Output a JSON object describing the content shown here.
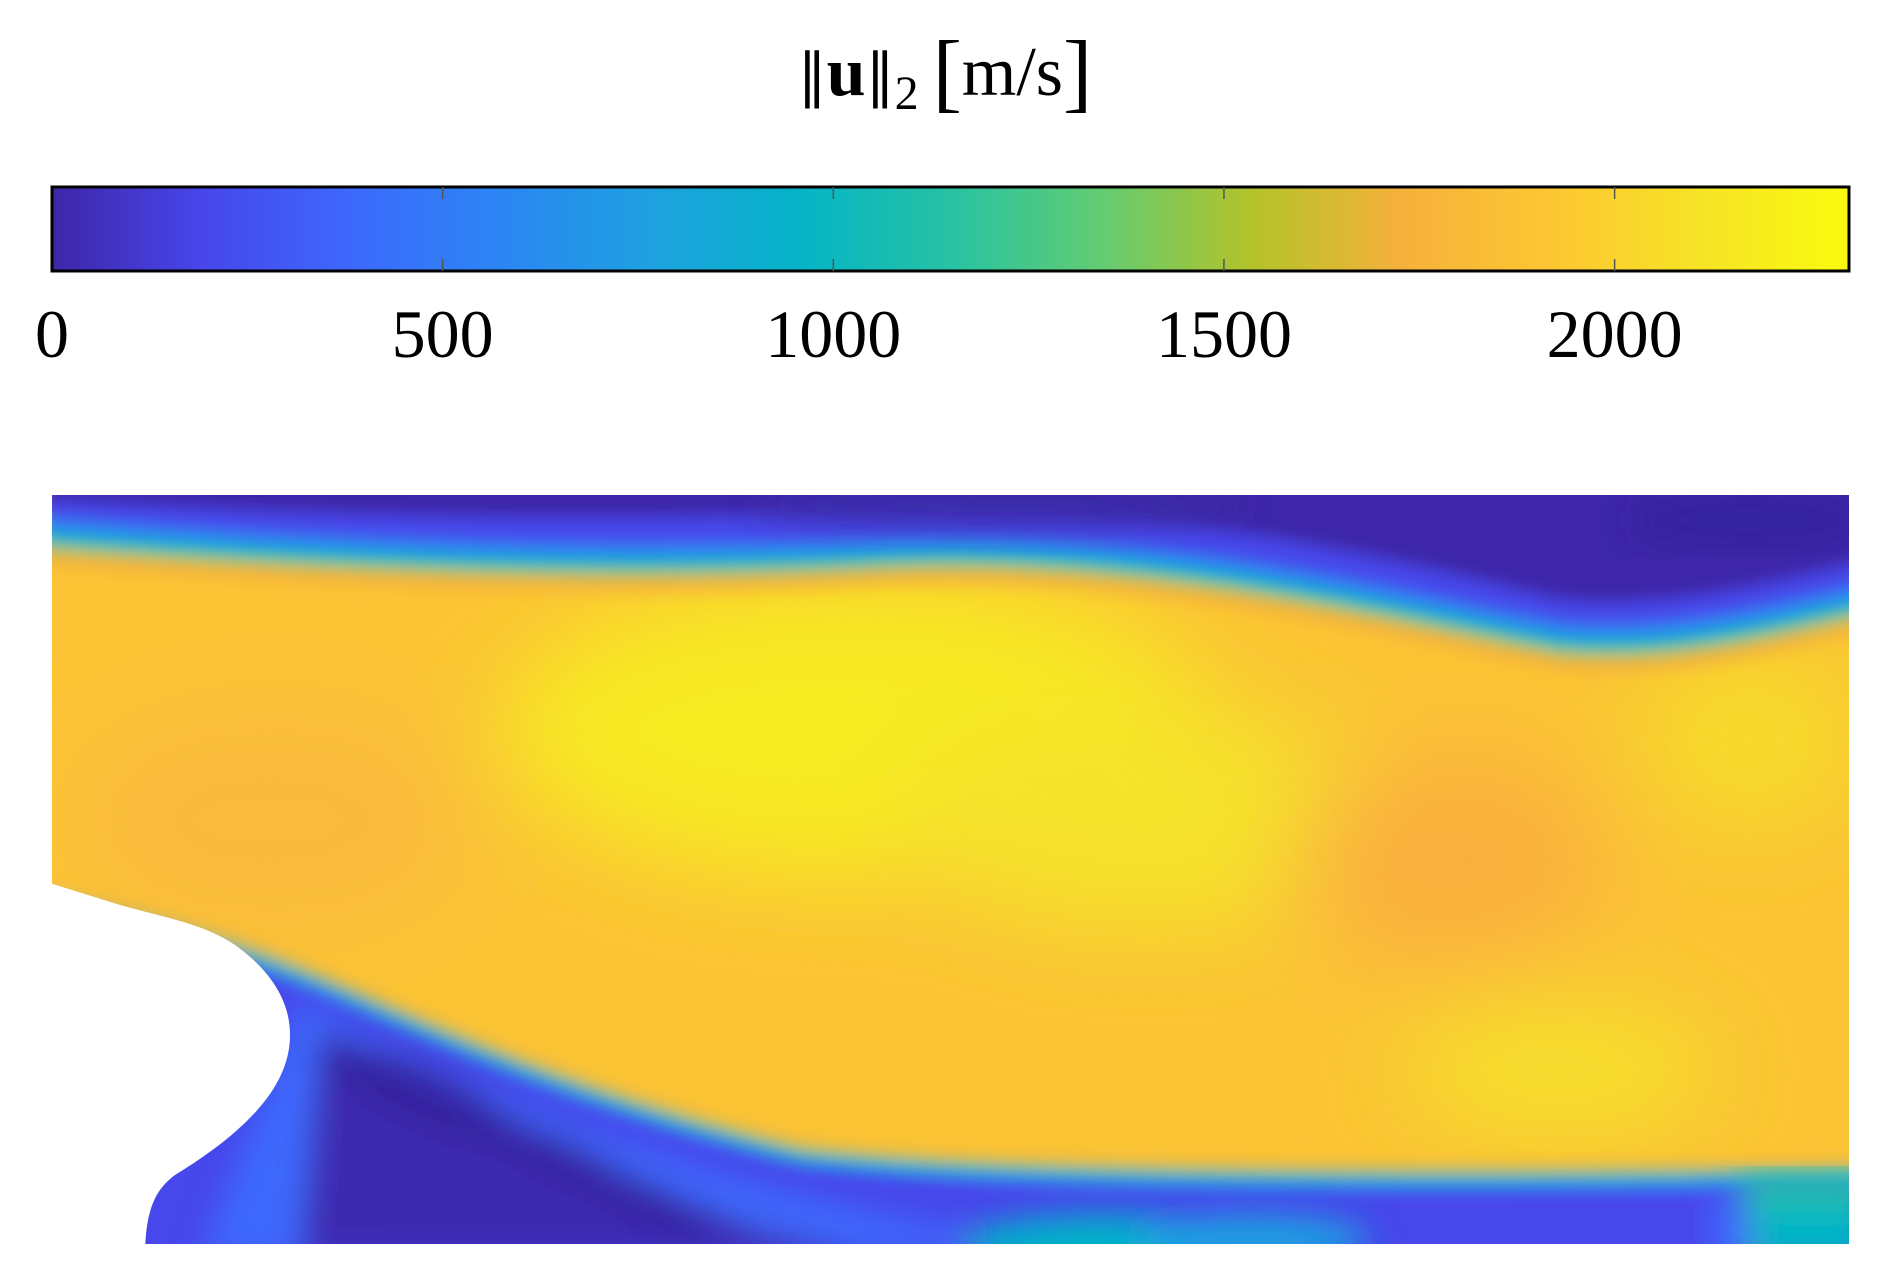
{
  "chart_data": {
    "type": "heatmap",
    "title_parts": {
      "norm_open": "‖",
      "vector": "u",
      "norm_close": "‖",
      "subscript": "2",
      "bracket_open": "[",
      "unit": "m/s",
      "bracket_close": "]"
    },
    "colorbar": {
      "orientation": "horizontal",
      "range": [
        0,
        2300
      ],
      "ticks": [
        0,
        500,
        1000,
        1500,
        2000
      ],
      "tick_labels": [
        "0",
        "500",
        "1000",
        "1500",
        "2000"
      ],
      "colormap": "parula",
      "colormap_stops": [
        "#3e26a8",
        "#4746eb",
        "#3d69fd",
        "#2b86f3",
        "#1ea1e0",
        "#04b4c7",
        "#27c2a3",
        "#62cc73",
        "#b2c32a",
        "#f5b13b",
        "#fdc632",
        "#f6e326",
        "#f9fb0e"
      ]
    },
    "field": {
      "quantity": "velocity magnitude",
      "units": "m/s",
      "regions": [
        {
          "region": "upper quiescent layer",
          "value_range": [
            50,
            250
          ]
        },
        {
          "region": "upper shear layer",
          "value_range": [
            700,
            1400
          ]
        },
        {
          "region": "central jet core",
          "value_range": [
            1950,
            2300
          ]
        },
        {
          "region": "lower shear layer",
          "value_range": [
            500,
            1400
          ]
        },
        {
          "region": "recirculation zone below lip",
          "value_range": [
            100,
            600
          ]
        },
        {
          "region": "lower-right wall layer",
          "value_range": [
            900,
            1300
          ]
        }
      ],
      "peak_value": 2300,
      "obstacle": "white rounded body at lower left"
    }
  }
}
